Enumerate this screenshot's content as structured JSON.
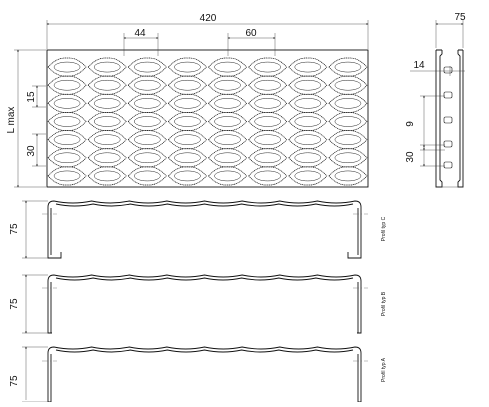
{
  "top_view": {
    "width_label": "420",
    "pitch_44_label": "44",
    "pitch_60_label": "60",
    "length_label": "L max",
    "row_15_label": "15",
    "row_30_label": "30",
    "columns": 8,
    "rows": 7
  },
  "side_view": {
    "width_label": "75",
    "label_14": "14",
    "label_9": "9",
    "label_30": "30"
  },
  "profiles": [
    {
      "height_label": "75",
      "type_label": "Profil typ C"
    },
    {
      "height_label": "75",
      "type_label": "Profil typ B"
    },
    {
      "height_label": "75",
      "type_label": "Profil typ A"
    }
  ]
}
